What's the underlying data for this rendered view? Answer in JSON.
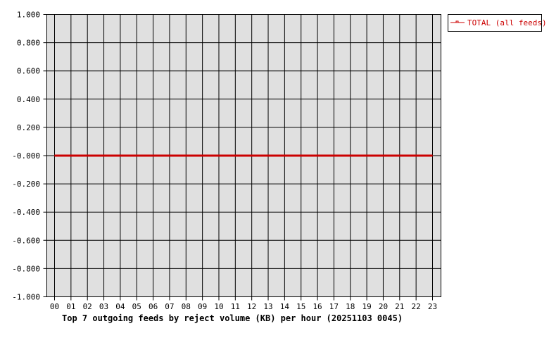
{
  "chart_data": {
    "type": "line",
    "title": "Top 7 outgoing feeds by reject volume (KB) per hour (20251103 0045)",
    "xlabel": "",
    "ylabel": "",
    "categories": [
      "00",
      "01",
      "02",
      "03",
      "04",
      "05",
      "06",
      "07",
      "08",
      "09",
      "10",
      "11",
      "12",
      "13",
      "14",
      "15",
      "16",
      "17",
      "18",
      "19",
      "20",
      "21",
      "22",
      "23"
    ],
    "yticks": [
      "1.000",
      "0.800",
      "0.600",
      "0.400",
      "0.200",
      "-0.000",
      "-0.200",
      "-0.400",
      "-0.600",
      "-0.800",
      "-1.000"
    ],
    "ylim": [
      -1,
      1
    ],
    "grid": true,
    "legend_placement": "top-right",
    "series": [
      {
        "name": "TOTAL (all feeds)",
        "color": "#cc0000",
        "values": [
          0,
          0,
          0,
          0,
          0,
          0,
          0,
          0,
          0,
          0,
          0,
          0,
          0,
          0,
          0,
          0,
          0,
          0,
          0,
          0,
          0,
          0,
          0,
          0
        ]
      }
    ],
    "colors": {
      "plot_bg": "#e0e0e0",
      "grid": "#000000",
      "legend_text": "#cc0000"
    }
  }
}
